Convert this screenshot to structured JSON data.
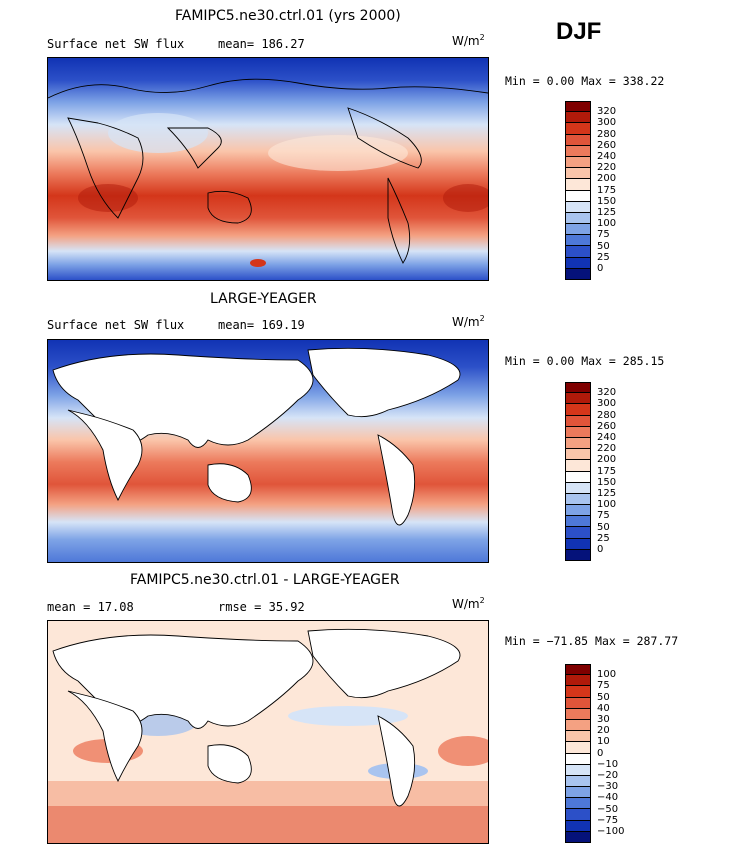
{
  "season": "DJF",
  "units_base": "W/m",
  "units_exp": "2",
  "panels": [
    {
      "title": "FAMIPC5.ne30.ctrl.01 (yrs 2000)",
      "left_label": "Surface net SW flux",
      "stat_label": "mean=",
      "stat_value": "186.27",
      "extra_label": "",
      "extra_value": "",
      "min_label": "Min =",
      "min_value": "0.00",
      "max_label": "Max =",
      "max_value": "338.22",
      "colorbar": [
        "320",
        "300",
        "280",
        "260",
        "240",
        "220",
        "200",
        "175",
        "150",
        "125",
        "100",
        "75",
        "50",
        "25",
        "0"
      ]
    },
    {
      "title": "LARGE-YEAGER",
      "left_label": "Surface net SW flux",
      "stat_label": "mean=",
      "stat_value": "169.19",
      "extra_label": "",
      "extra_value": "",
      "min_label": "Min =",
      "min_value": "0.00",
      "max_label": "Max =",
      "max_value": "285.15",
      "colorbar": [
        "320",
        "300",
        "280",
        "260",
        "240",
        "220",
        "200",
        "175",
        "150",
        "125",
        "100",
        "75",
        "50",
        "25",
        "0"
      ]
    },
    {
      "title": "FAMIPC5.ne30.ctrl.01 - LARGE-YEAGER",
      "left_label": "mean =",
      "stat_label": "",
      "stat_value": "17.08",
      "extra_label": "rmse =",
      "extra_value": "35.92",
      "min_label": "Min =",
      "min_value": "−71.85",
      "max_label": "Max =",
      "max_value": "287.77",
      "colorbar": [
        "100",
        "75",
        "50",
        "40",
        "30",
        "20",
        "10",
        "0",
        "−10",
        "−20",
        "−30",
        "−40",
        "−50",
        "−75",
        "−100"
      ]
    }
  ],
  "palette": [
    "#7f0000",
    "#b01a0a",
    "#d4361a",
    "#e0553a",
    "#ec7a5c",
    "#f4a182",
    "#fac5aa",
    "#fde7d8",
    "#fefefe",
    "#d6e4f7",
    "#a9c4ef",
    "#7ea3e6",
    "#4e78d8",
    "#2c50c8",
    "#1133b4",
    "#05127a"
  ],
  "land_color": "#ffffff"
}
